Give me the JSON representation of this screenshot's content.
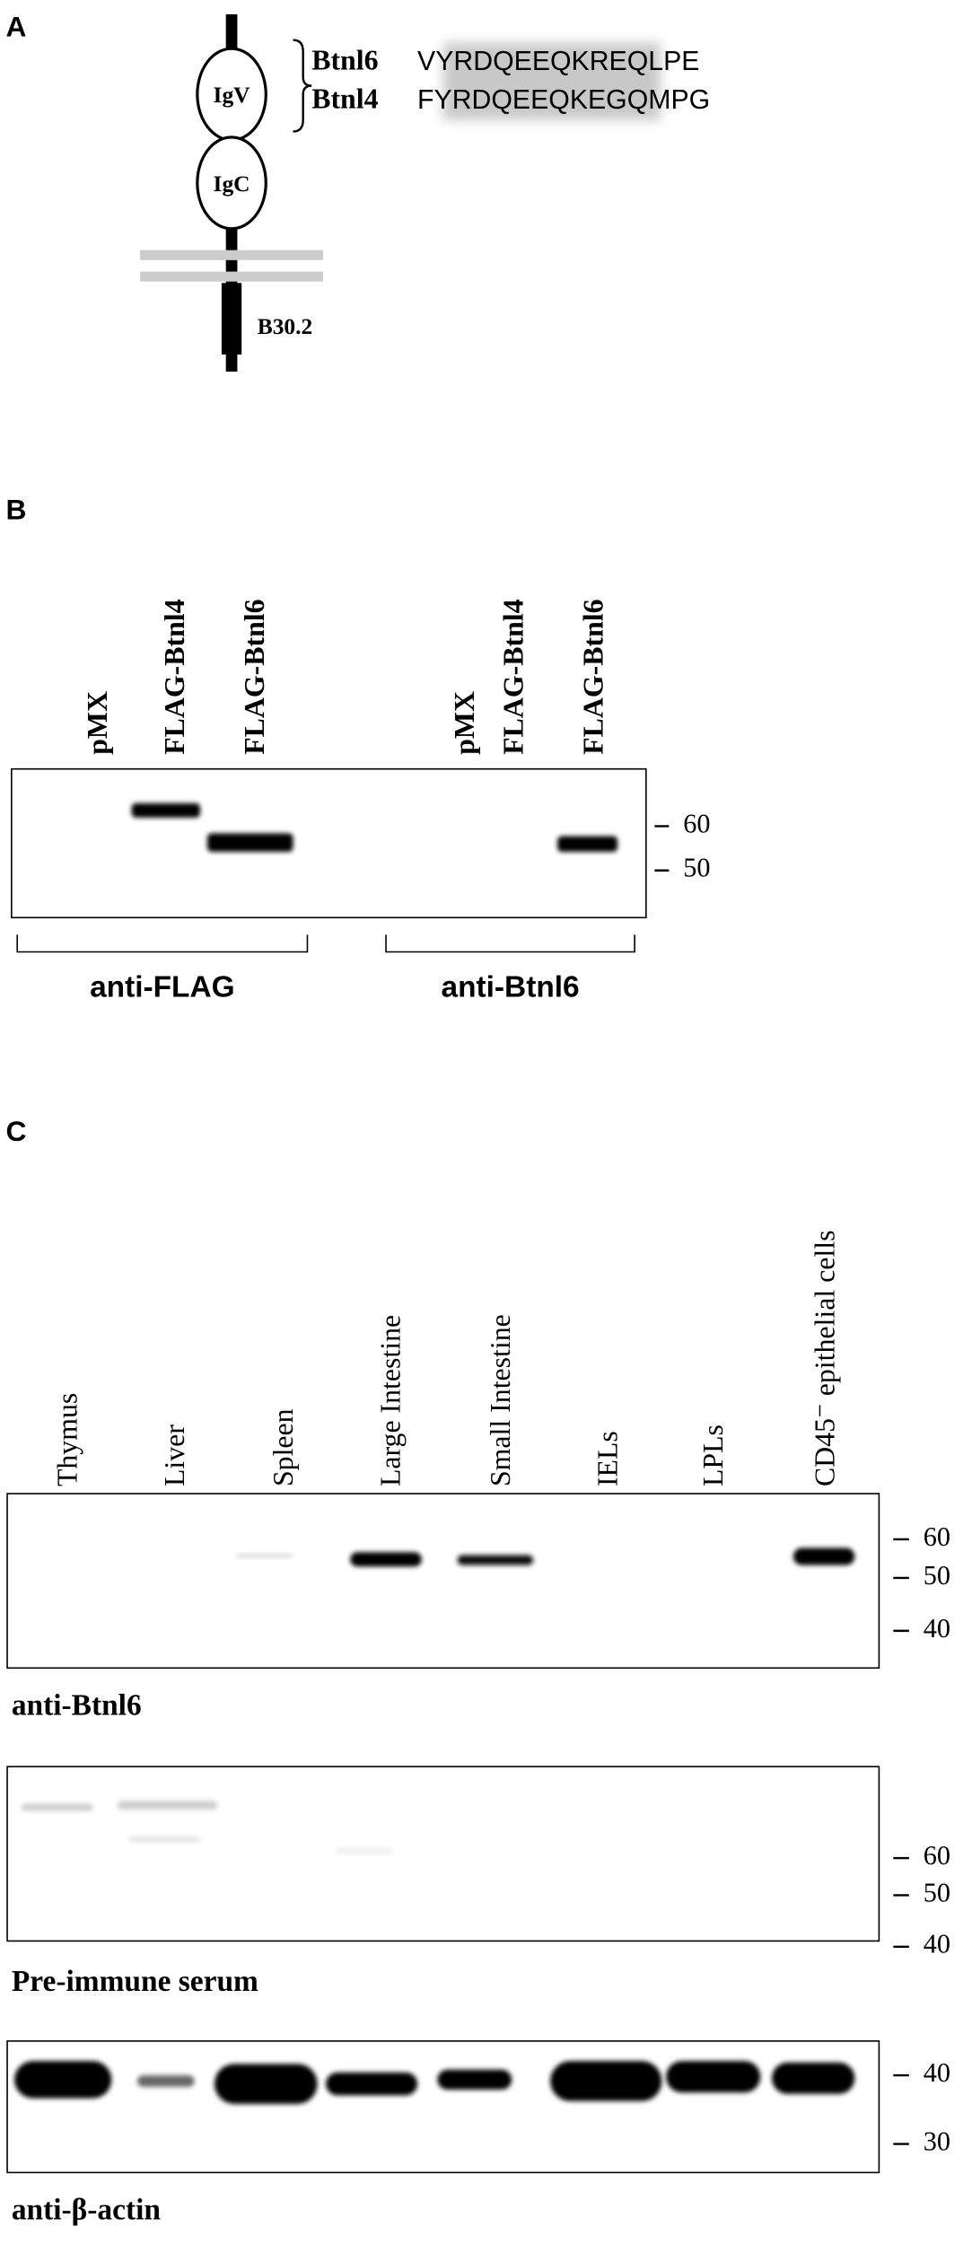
{
  "panel_a": {
    "label": "A",
    "domains": [
      "IgV",
      "IgC",
      "B30.2"
    ],
    "sequences": [
      {
        "name": "Btnl6",
        "pre": "V",
        "shared": "YRDQEEQK",
        "post": "REQLPE"
      },
      {
        "name": "Btnl4",
        "pre": "F",
        "shared": "YRDQEEQK",
        "post": "EGQMPG"
      }
    ]
  },
  "panel_b": {
    "label": "B",
    "lanes": [
      "pMX",
      "FLAG-Btnl4",
      "FLAG-Btnl6",
      "pMX",
      "FLAG-Btnl4",
      "FLAG-Btnl6"
    ],
    "markers": [
      60,
      50
    ],
    "groups": [
      "anti-FLAG",
      "anti-Btnl6"
    ]
  },
  "panel_c": {
    "label": "C",
    "lanes": [
      "Thymus",
      "Liver",
      "Spleen",
      "Large Intestine",
      "Small Intestine",
      "IELs",
      "LPLs",
      "CD45⁻ epithelial cells"
    ],
    "blots": [
      {
        "label": "anti-Btnl6",
        "markers": [
          60,
          50,
          40
        ]
      },
      {
        "label": "Pre-immune serum",
        "markers": [
          60,
          50,
          40
        ]
      },
      {
        "label": "anti-β-actin",
        "markers": [
          40,
          30
        ]
      }
    ]
  }
}
